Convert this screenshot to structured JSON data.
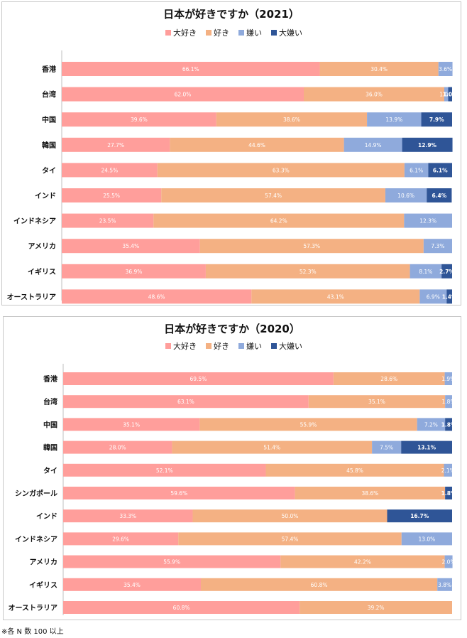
{
  "footnote": "※各 N 数 100 以上",
  "colors": {
    "大好き": "#ff9e9b",
    "好き": "#f4b183",
    "嫌い": "#8faadc",
    "大嫌い": "#2f5597"
  },
  "chart_data": [
    {
      "type": "bar",
      "orientation": "horizontal",
      "stacked": true,
      "title": "日本が好きですか（2021）",
      "legend": [
        "大好き",
        "好き",
        "嫌い",
        "大嫌い"
      ],
      "categories": [
        "香港",
        "台湾",
        "中国",
        "韓国",
        "タイ",
        "インド",
        "インドネシア",
        "アメリカ",
        "イギリス",
        "オーストラリア"
      ],
      "series": [
        {
          "name": "大好き",
          "values": [
            66.1,
            62.0,
            39.6,
            27.7,
            24.5,
            25.5,
            23.5,
            35.4,
            36.9,
            48.6
          ]
        },
        {
          "name": "好き",
          "values": [
            30.4,
            36.0,
            38.6,
            44.6,
            63.3,
            57.4,
            64.2,
            57.3,
            52.3,
            43.1
          ]
        },
        {
          "name": "嫌い",
          "values": [
            3.6,
            1.0,
            13.9,
            14.9,
            6.1,
            10.6,
            12.3,
            7.3,
            8.1,
            6.9
          ]
        },
        {
          "name": "大嫌い",
          "values": [
            0.0,
            1.0,
            7.9,
            12.9,
            6.1,
            6.4,
            0.0,
            0.0,
            2.7,
            1.4
          ]
        }
      ],
      "labels": [
        [
          "66.1%",
          "30.4%",
          "3.6%",
          ""
        ],
        [
          "62.0%",
          "36.0%",
          "1.0%",
          "1.0%"
        ],
        [
          "39.6%",
          "38.6%",
          "13.9%",
          "7.9%"
        ],
        [
          "27.7%",
          "44.6%",
          "14.9%",
          "12.9%"
        ],
        [
          "24.5%",
          "63.3%",
          "6.1%",
          "6.1%"
        ],
        [
          "25.5%",
          "57.4%",
          "10.6%",
          "6.4%"
        ],
        [
          "23.5%",
          "64.2%",
          "12.3%",
          ""
        ],
        [
          "35.4%",
          "57.3%",
          "7.3%",
          ""
        ],
        [
          "36.9%",
          "52.3%",
          "8.1%",
          "2.7%"
        ],
        [
          "48.6%",
          "43.1%",
          "6.9%",
          "1.4%"
        ]
      ],
      "xlim": [
        0,
        100
      ]
    },
    {
      "type": "bar",
      "orientation": "horizontal",
      "stacked": true,
      "title": "日本が好きですか（2020）",
      "legend": [
        "大好き",
        "好き",
        "嫌い",
        "大嫌い"
      ],
      "categories": [
        "香港",
        "台湾",
        "中国",
        "韓国",
        "タイ",
        "シンガポール",
        "インド",
        "インドネシア",
        "アメリカ",
        "イギリス",
        "オーストラリア"
      ],
      "series": [
        {
          "name": "大好き",
          "values": [
            69.5,
            63.1,
            35.1,
            28.0,
            52.1,
            59.6,
            33.3,
            29.6,
            55.9,
            35.4,
            60.8
          ]
        },
        {
          "name": "好き",
          "values": [
            28.6,
            35.1,
            55.9,
            51.4,
            45.8,
            38.6,
            50.0,
            57.4,
            42.2,
            60.8,
            39.2
          ]
        },
        {
          "name": "嫌い",
          "values": [
            1.9,
            1.8,
            7.2,
            7.5,
            2.1,
            0.0,
            0.0,
            13.0,
            2.0,
            3.8,
            0.0
          ]
        },
        {
          "name": "大嫌い",
          "values": [
            0.0,
            0.0,
            1.8,
            13.1,
            0.0,
            1.8,
            16.7,
            0.0,
            0.0,
            0.0,
            0.0
          ]
        }
      ],
      "labels": [
        [
          "69.5%",
          "28.6%",
          "1.9%",
          ""
        ],
        [
          "63.1%",
          "35.1%",
          "1.8%",
          ""
        ],
        [
          "35.1%",
          "55.9%",
          "7.2%",
          "1.8%"
        ],
        [
          "28.0%",
          "51.4%",
          "7.5%",
          "13.1%"
        ],
        [
          "52.1%",
          "45.8%",
          "2.1%",
          ""
        ],
        [
          "59.6%",
          "38.6%",
          "",
          "1.8%"
        ],
        [
          "33.3%",
          "50.0%",
          "",
          "16.7%"
        ],
        [
          "29.6%",
          "57.4%",
          "13.0%",
          ""
        ],
        [
          "55.9%",
          "42.2%",
          "2.0%",
          ""
        ],
        [
          "35.4%",
          "60.8%",
          "3.8%",
          ""
        ],
        [
          "60.8%",
          "39.2%",
          "",
          ""
        ]
      ],
      "xlim": [
        0,
        100
      ]
    }
  ]
}
